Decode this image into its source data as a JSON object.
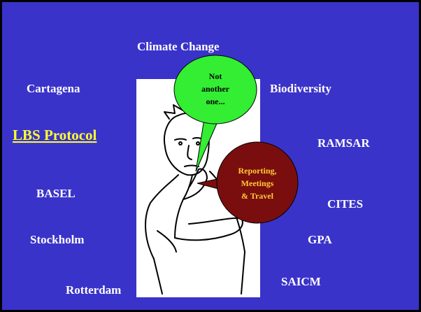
{
  "slide": {
    "topics": [
      "Climate Change",
      "Cartagena",
      "Biodiversity",
      "RAMSAR",
      "BASEL",
      "CITES",
      "Stockholm",
      "GPA",
      "SAICM",
      "Rotterdam"
    ],
    "highlight": "LBS Protocol",
    "speech_bubble": [
      "Not",
      "another",
      "one..."
    ],
    "burden_bubble": [
      "Reporting,",
      "Meetings",
      "& Travel"
    ]
  }
}
